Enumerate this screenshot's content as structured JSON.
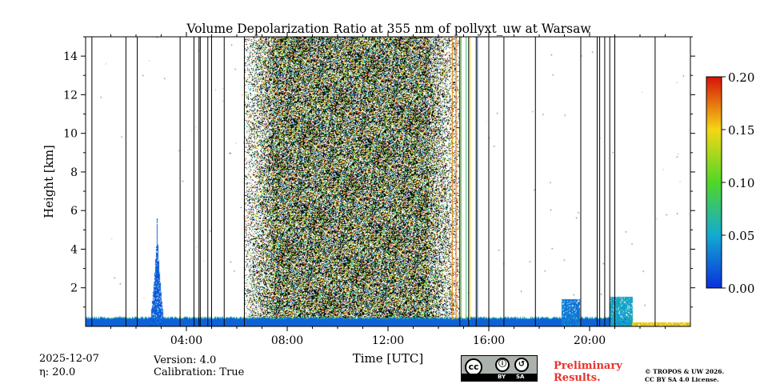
{
  "chart_data": {
    "type": "heatmap",
    "title": "Volume Depolarization Ratio at 355 nm of pollyxt_uw at Warsaw",
    "xlabel": "Time [UTC]",
    "ylabel": "Height [km]",
    "xlim_hours": [
      0,
      24
    ],
    "ylim_km": [
      0,
      15
    ],
    "x_ticks": [
      {
        "hour": 4,
        "label": "04:00"
      },
      {
        "hour": 8,
        "label": "08:00"
      },
      {
        "hour": 12,
        "label": "12:00"
      },
      {
        "hour": 16,
        "label": "16:00"
      },
      {
        "hour": 20,
        "label": "20:00"
      }
    ],
    "y_ticks": [
      {
        "km": 2,
        "label": "2"
      },
      {
        "km": 4,
        "label": "4"
      },
      {
        "km": 6,
        "label": "6"
      },
      {
        "km": 8,
        "label": "8"
      },
      {
        "km": 10,
        "label": "10"
      },
      {
        "km": 12,
        "label": "12"
      },
      {
        "km": 14,
        "label": "14"
      }
    ],
    "colorbar": {
      "range": [
        0.0,
        0.2
      ],
      "ticks": [
        {
          "value": 0.0,
          "label": "0.00"
        },
        {
          "value": 0.05,
          "label": "0.05"
        },
        {
          "value": 0.1,
          "label": "0.10"
        },
        {
          "value": 0.15,
          "label": "0.15"
        },
        {
          "value": 0.2,
          "label": "0.20"
        }
      ]
    },
    "noise_region_hours": [
      6.3,
      14.8
    ],
    "dense_noise_hours": [
      7.4,
      13.6
    ],
    "boundary_layer_top_km": 0.5,
    "boundary_layer_value": 0.02,
    "features": [
      {
        "start_hour": 2.6,
        "end_hour": 3.05,
        "top_km": 5.7,
        "value": 0.02
      },
      {
        "start_hour": 18.9,
        "end_hour": 19.6,
        "top_km": 1.4,
        "value": 0.03
      },
      {
        "start_hour": 20.8,
        "end_hour": 21.7,
        "top_km": 1.5,
        "value": 0.05
      },
      {
        "start_hour": 21.7,
        "end_hour": 24.0,
        "top_km": 0.2,
        "value": 0.15
      }
    ],
    "gap_profile_hours": [
      0.25,
      1.6,
      2.05,
      3.75,
      4.3,
      4.5,
      4.55,
      4.85,
      5.0,
      5.5,
      6.3,
      14.85,
      15.2,
      15.5,
      16.0,
      16.6,
      17.85,
      19.65,
      20.3,
      20.4,
      20.6,
      20.8,
      21.0,
      22.6
    ],
    "colored_profiles": [
      {
        "hour": 14.55,
        "value": 0.17
      },
      {
        "hour": 14.7,
        "value": 0.18
      },
      {
        "hour": 14.9,
        "value": 0.1
      },
      {
        "hour": 15.1,
        "value": 0.08
      },
      {
        "hour": 15.25,
        "value": 0.15
      },
      {
        "hour": 15.55,
        "value": 0.02
      }
    ]
  },
  "footer": {
    "date": "2025-12-07",
    "eta": "η: 20.0",
    "version": "Version: 4.0",
    "calibration": "Calibration: True",
    "preliminary_line1": "Preliminary",
    "preliminary_line2": "Results.",
    "copyright_line1": "© TROPOS & UW 2026.",
    "copyright_line2": "CC BY SA 4.0 License.",
    "cc_badge": {
      "by_label": "BY",
      "sa_label": "SA"
    }
  }
}
